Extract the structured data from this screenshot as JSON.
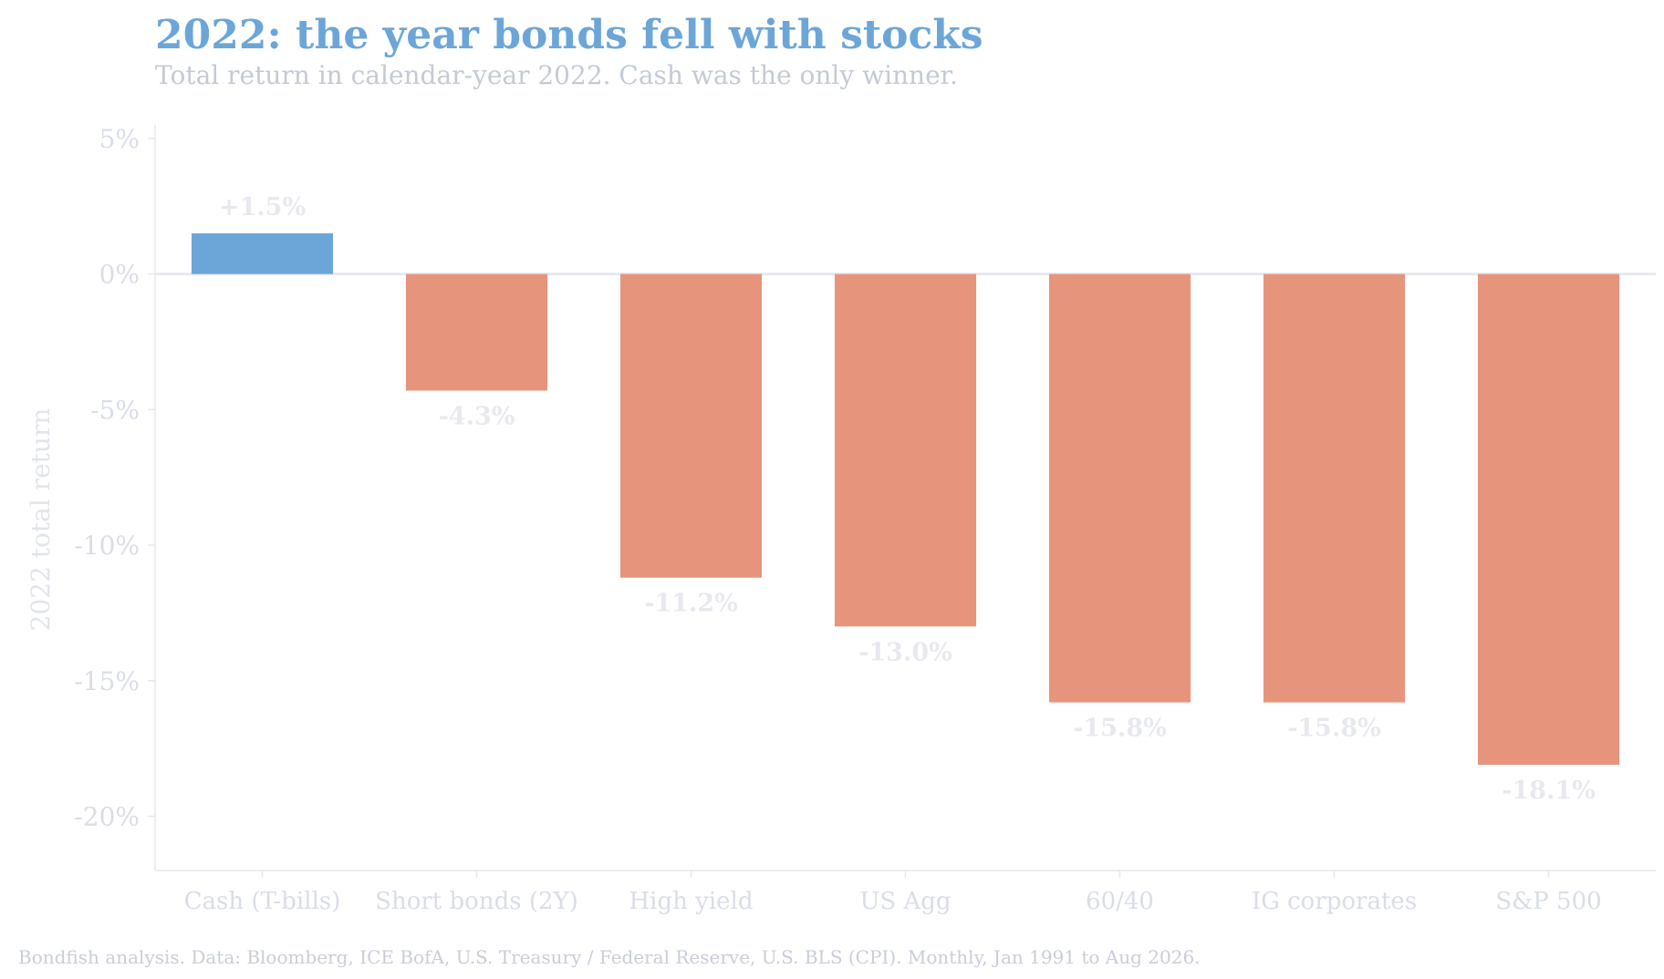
{
  "title": "2022: the year bonds fell with stocks",
  "subtitle": "Total return in calendar-year 2022. Cash was the only winner.",
  "source": "Bondfish analysis. Data: Bloomberg, ICE BofA, U.S. Treasury / Federal Reserve, U.S. BLS (CPI). Monthly, Jan 1991 to Aug 2026.",
  "colors": {
    "positive": "#6ca6d8",
    "negative": "#e6957c",
    "axis": "#e6e8ee",
    "zero_line": "#e8e9ee"
  },
  "chart_data": {
    "type": "bar",
    "title": "2022: the year bonds fell with stocks",
    "subtitle": "Total return in calendar-year 2022. Cash was the only winner.",
    "xlabel": "",
    "ylabel": "2022 total return",
    "categories": [
      "Cash (T-bills)",
      "Short bonds (2Y)",
      "High yield",
      "US Agg",
      "60/40",
      "IG corporates",
      "S&P 500"
    ],
    "values": [
      1.5,
      -4.3,
      -11.2,
      -13.0,
      -15.8,
      -15.8,
      -18.1
    ],
    "data_labels": [
      "+1.5%",
      "-4.3%",
      "-11.2%",
      "-13.0%",
      "-15.8%",
      "-15.8%",
      "-18.1%"
    ],
    "ylim": [
      -22,
      5.5
    ],
    "yticks": [
      5,
      0,
      -5,
      -10,
      -15,
      -20
    ],
    "ytick_labels": [
      "5%",
      "0%",
      "-5%",
      "-10%",
      "-15%",
      "-20%"
    ],
    "grid": false,
    "legend": "none"
  }
}
